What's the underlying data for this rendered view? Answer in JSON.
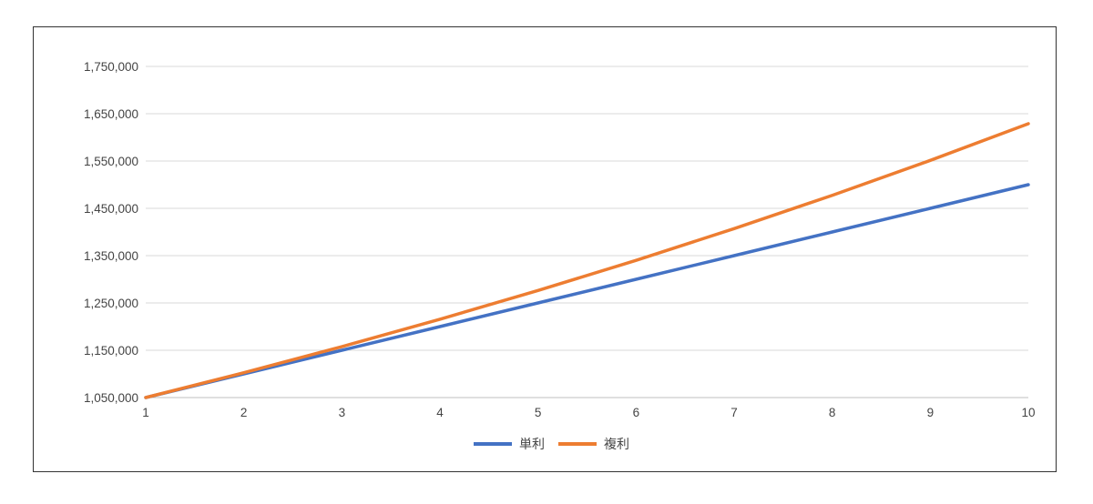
{
  "chart_data": {
    "type": "line",
    "title": "",
    "xlabel": "",
    "ylabel": "",
    "x": [
      1,
      2,
      3,
      4,
      5,
      6,
      7,
      8,
      9,
      10
    ],
    "x_tick_labels": [
      "1",
      "2",
      "3",
      "4",
      "5",
      "6",
      "7",
      "8",
      "9",
      "10"
    ],
    "ylim": [
      1050000,
      1750000
    ],
    "y_tick_labels": [
      "1,050,000",
      "1,150,000",
      "1,250,000",
      "1,350,000",
      "1,450,000",
      "1,550,000",
      "1,650,000",
      "1,750,000"
    ],
    "y_ticks": [
      1050000,
      1150000,
      1250000,
      1350000,
      1450000,
      1550000,
      1650000,
      1750000
    ],
    "grid": true,
    "legend_position": "bottom",
    "series": [
      {
        "name": "単利",
        "color": "#4472c4",
        "values": [
          1050000,
          1100000,
          1150000,
          1200000,
          1250000,
          1300000,
          1350000,
          1400000,
          1450000,
          1500000
        ]
      },
      {
        "name": "複利",
        "color": "#ed7d31",
        "values": [
          1050000,
          1102500,
          1157625,
          1215506,
          1276282,
          1340096,
          1407100,
          1477455,
          1551328,
          1628895
        ]
      }
    ]
  }
}
